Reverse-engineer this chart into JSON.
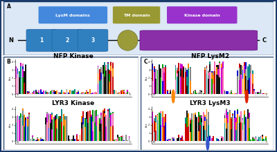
{
  "panel_a": {
    "lysm_color": "#3080c0",
    "tm_color": "#9b9b3a",
    "kinase_color_start": "#9932CC",
    "kinase_color_end": "#6600aa",
    "lysm_label_color": "#4488dd",
    "tm_label_color": "#999933",
    "kinase_label_color": "#9932CC",
    "background": "#dce8f5",
    "border_color": "#1a3a6a"
  },
  "panel_b_title": "NFP Kinase",
  "panel_b2_title": "LYR3 Kinase",
  "panel_c_title": "NFP LysM2",
  "panel_c2_title": "LYR3 LysM3",
  "border_color": "#1a3a6a",
  "dot_orange": "#ff8800",
  "dot_red": "#dd2200",
  "dot_blue": "#3355cc"
}
